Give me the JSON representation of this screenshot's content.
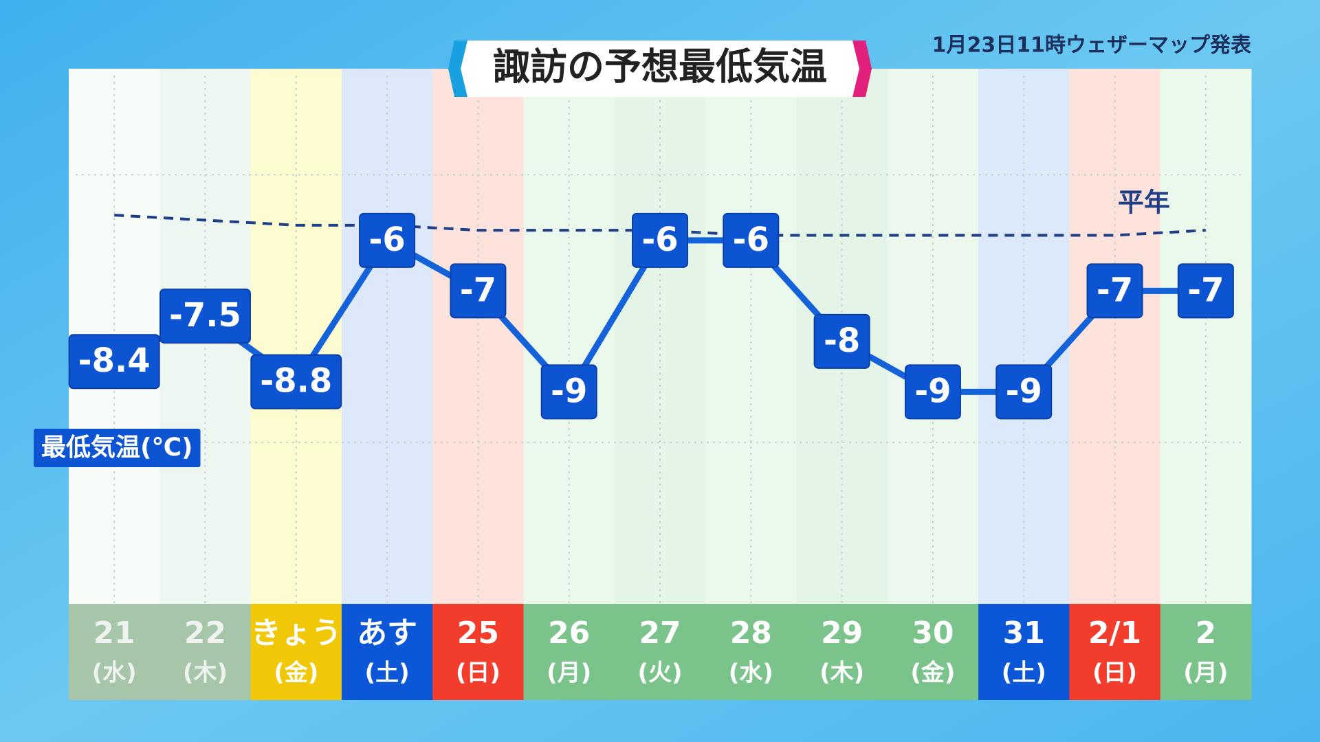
{
  "chart_data": {
    "type": "line",
    "title": "諏訪の予想最低気温",
    "note": "1月23日11時ウェザーマップ発表",
    "categories": [
      "21",
      "22",
      "きょう",
      "あす",
      "25",
      "26",
      "27",
      "28",
      "29",
      "30",
      "31",
      "2/1",
      "2"
    ],
    "weekdays": [
      "(水)",
      "(木)",
      "(金)",
      "(土)",
      "(日)",
      "(月)",
      "(火)",
      "(水)",
      "(木)",
      "(金)",
      "(土)",
      "(日)",
      "(月)"
    ],
    "series": [
      {
        "name": "最低気温(℃)",
        "color": "#1462da",
        "values": [
          -8.4,
          -7.5,
          -8.8,
          -6,
          -7,
          -9,
          -6,
          -6,
          -8,
          -9,
          -9,
          -7,
          -7
        ]
      },
      {
        "name": "平年",
        "color": "#1e3f86",
        "dashed": true,
        "values": [
          -5.5,
          -5.6,
          -5.7,
          -5.7,
          -5.8,
          -5.8,
          -5.8,
          -5.9,
          -5.9,
          -5.9,
          -5.9,
          -5.9,
          -5.8
        ]
      }
    ],
    "ylim": [
      -13.2,
      -2.6
    ],
    "gridlines": [
      -4.7,
      -10
    ],
    "column_colors": [
      "#f7fcf9",
      "#eef6f1",
      "#fdfbd0",
      "#dde9fb",
      "#fde3dc",
      "#ebf8ec",
      "#e4f4e6",
      "#ebf8ec",
      "#e4f4e6",
      "#ecf8ee",
      "#dce9fb",
      "#fde3dc",
      "#ebf8ec"
    ],
    "label_colors": [
      "#a6c5a9",
      "#a6c5a9",
      "#f0c808",
      "#0b57d8",
      "#f23c2c",
      "#7ac48c",
      "#7ac48c",
      "#7ac48c",
      "#7ac48c",
      "#7ac48c",
      "#0b57d8",
      "#f23c2c",
      "#7ac48c"
    ]
  }
}
